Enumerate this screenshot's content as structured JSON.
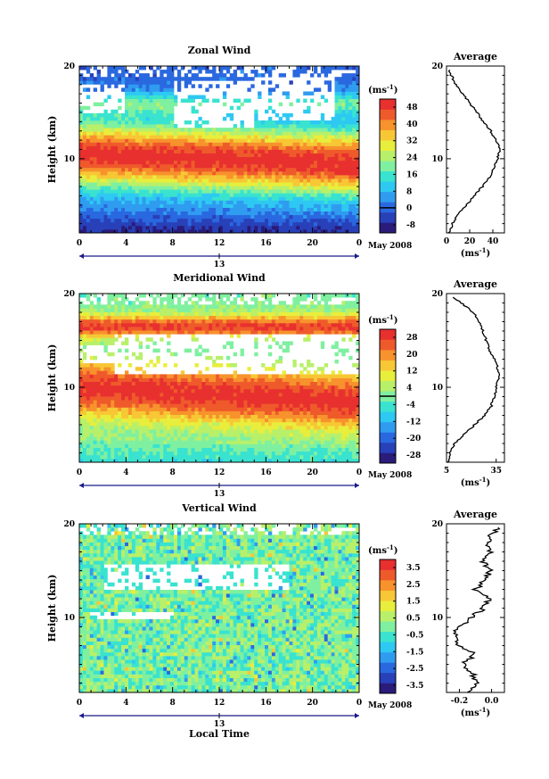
{
  "chart_data": [
    {
      "type": "heatmap",
      "title": "Zonal Wind",
      "ylabel": "Height (km)",
      "xlabel": "",
      "ylim": [
        2,
        20
      ],
      "xlim": [
        0,
        24
      ],
      "yticks": [
        "10",
        "20"
      ],
      "yticks_values": [
        10,
        20
      ],
      "xticks": [
        "0",
        "4",
        "8",
        "12",
        "16",
        "20",
        "0"
      ],
      "date_tick_label": "13",
      "date_label": "May 2008",
      "colorbar": {
        "unit": "(ms",
        "unit_exp": "-1",
        "unit_close": ")",
        "ticks": [
          "48",
          "40",
          "32",
          "24",
          "16",
          "8",
          "0",
          "-8"
        ],
        "min": -12,
        "max": 52,
        "zero_line": 0
      },
      "field": {
        "jet_height_start": 10.5,
        "jet_height_end": 9.5,
        "jet_max": 50,
        "jet_width": 3.5,
        "upper_jet_height": 16,
        "upper_jet_max": 18,
        "low_level_min": -8,
        "gaps": [
          [
            8,
            15,
            18.5,
            13.5
          ],
          [
            15,
            22,
            19,
            14
          ],
          [
            0,
            4,
            18,
            15
          ]
        ]
      },
      "profile": {
        "title": "Average",
        "xlabel_unit": "(ms",
        "xlabel_exp": "-1",
        "xlabel_close": ")",
        "xticks": [
          "0",
          "20",
          "40"
        ],
        "xlim": [
          0,
          50
        ],
        "yticks": [
          "10",
          "20"
        ],
        "heights": [
          2,
          3,
          4,
          5,
          6,
          7,
          8,
          9,
          10,
          11,
          12,
          13,
          14,
          15,
          16,
          17,
          18,
          19,
          19.6
        ],
        "values": [
          2,
          5,
          10,
          17,
          24,
          31,
          37,
          41,
          44,
          46,
          43,
          38,
          32,
          26,
          20,
          14,
          8,
          4,
          2
        ]
      }
    },
    {
      "type": "heatmap",
      "title": "Meridional Wind",
      "ylabel": "Height (km)",
      "xlabel": "",
      "ylim": [
        2,
        20
      ],
      "xlim": [
        0,
        24
      ],
      "yticks": [
        "10",
        "20"
      ],
      "yticks_values": [
        10,
        20
      ],
      "xticks": [
        "0",
        "4",
        "8",
        "12",
        "16",
        "20",
        "0"
      ],
      "date_tick_label": "13",
      "date_label": "May 2008",
      "colorbar": {
        "unit": "(ms",
        "unit_exp": "-1",
        "unit_close": ")",
        "ticks": [
          "28",
          "20",
          "12",
          "4",
          "-4",
          "-12",
          "-20",
          "-28"
        ],
        "min": -32,
        "max": 32,
        "zero_line": 0
      },
      "field": {
        "jet_height_start": 10,
        "jet_height_end": 8.5,
        "jet_max": 30,
        "jet_width": 3,
        "upper_jet_height": 16.5,
        "upper_jet_max": 28,
        "low_level_min": -6,
        "gaps": [
          [
            3,
            24,
            15.8,
            11.5
          ],
          [
            0,
            8,
            14.5,
            12.5
          ]
        ]
      },
      "profile": {
        "title": "Average",
        "xlabel_unit": "(ms",
        "xlabel_exp": "-1",
        "xlabel_close": ")",
        "xticks": [
          "5",
          "35"
        ],
        "xlim": [
          5,
          40
        ],
        "yticks": [
          "10",
          "20"
        ],
        "heights": [
          2,
          3,
          4,
          5,
          6,
          7,
          8,
          9,
          10,
          11,
          12,
          13,
          14,
          15,
          16,
          17,
          18,
          19,
          19.6
        ],
        "values": [
          6,
          7,
          10,
          16,
          22,
          28,
          32,
          34,
          35,
          37,
          36,
          34,
          31,
          29,
          27,
          25,
          21,
          14,
          9
        ]
      }
    },
    {
      "type": "heatmap",
      "title": "Vertical Wind",
      "ylabel": "Height (km)",
      "xlabel": "Local Time",
      "ylim": [
        2,
        20
      ],
      "xlim": [
        0,
        24
      ],
      "yticks": [
        "10",
        "20"
      ],
      "yticks_values": [
        10,
        20
      ],
      "xticks": [
        "0",
        "4",
        "8",
        "12",
        "16",
        "20",
        "0"
      ],
      "date_tick_label": "13",
      "date_label": "May 2008",
      "colorbar": {
        "unit": "(ms",
        "unit_exp": "-1",
        "unit_close": ")",
        "ticks": [
          "3.5",
          "2.5",
          "1.5",
          "0.5",
          "-0.5",
          "-1.5",
          "-2.5",
          "-3.5"
        ],
        "min": -4,
        "max": 4,
        "zero_line": null
      },
      "field": {
        "jet_height_start": 10,
        "jet_height_end": 10,
        "jet_max": 0.3,
        "jet_width": 3,
        "upper_jet_height": 16,
        "upper_jet_max": 0.2,
        "low_level_min": 0,
        "gaps": [
          [
            2,
            18,
            15.5,
            13
          ],
          [
            1,
            8,
            10.8,
            9.8
          ]
        ]
      },
      "profile": {
        "title": "Average",
        "xlabel_unit": "(ms",
        "xlabel_exp": "-1",
        "xlabel_close": ")",
        "xticks": [
          "-0.2",
          "0.0"
        ],
        "xlim": [
          -0.28,
          0.08
        ],
        "yticks": [
          "10",
          "20"
        ],
        "heights": [
          2,
          3,
          4,
          5,
          6,
          7,
          8,
          9,
          10,
          11,
          12,
          13,
          14,
          15,
          16,
          17,
          18,
          19,
          19.6
        ],
        "values": [
          -0.14,
          -0.08,
          -0.12,
          -0.18,
          -0.1,
          -0.2,
          -0.24,
          -0.2,
          -0.13,
          -0.05,
          -0.02,
          -0.1,
          -0.04,
          -0.01,
          -0.06,
          0.0,
          -0.03,
          0.01,
          0.05
        ]
      }
    }
  ]
}
